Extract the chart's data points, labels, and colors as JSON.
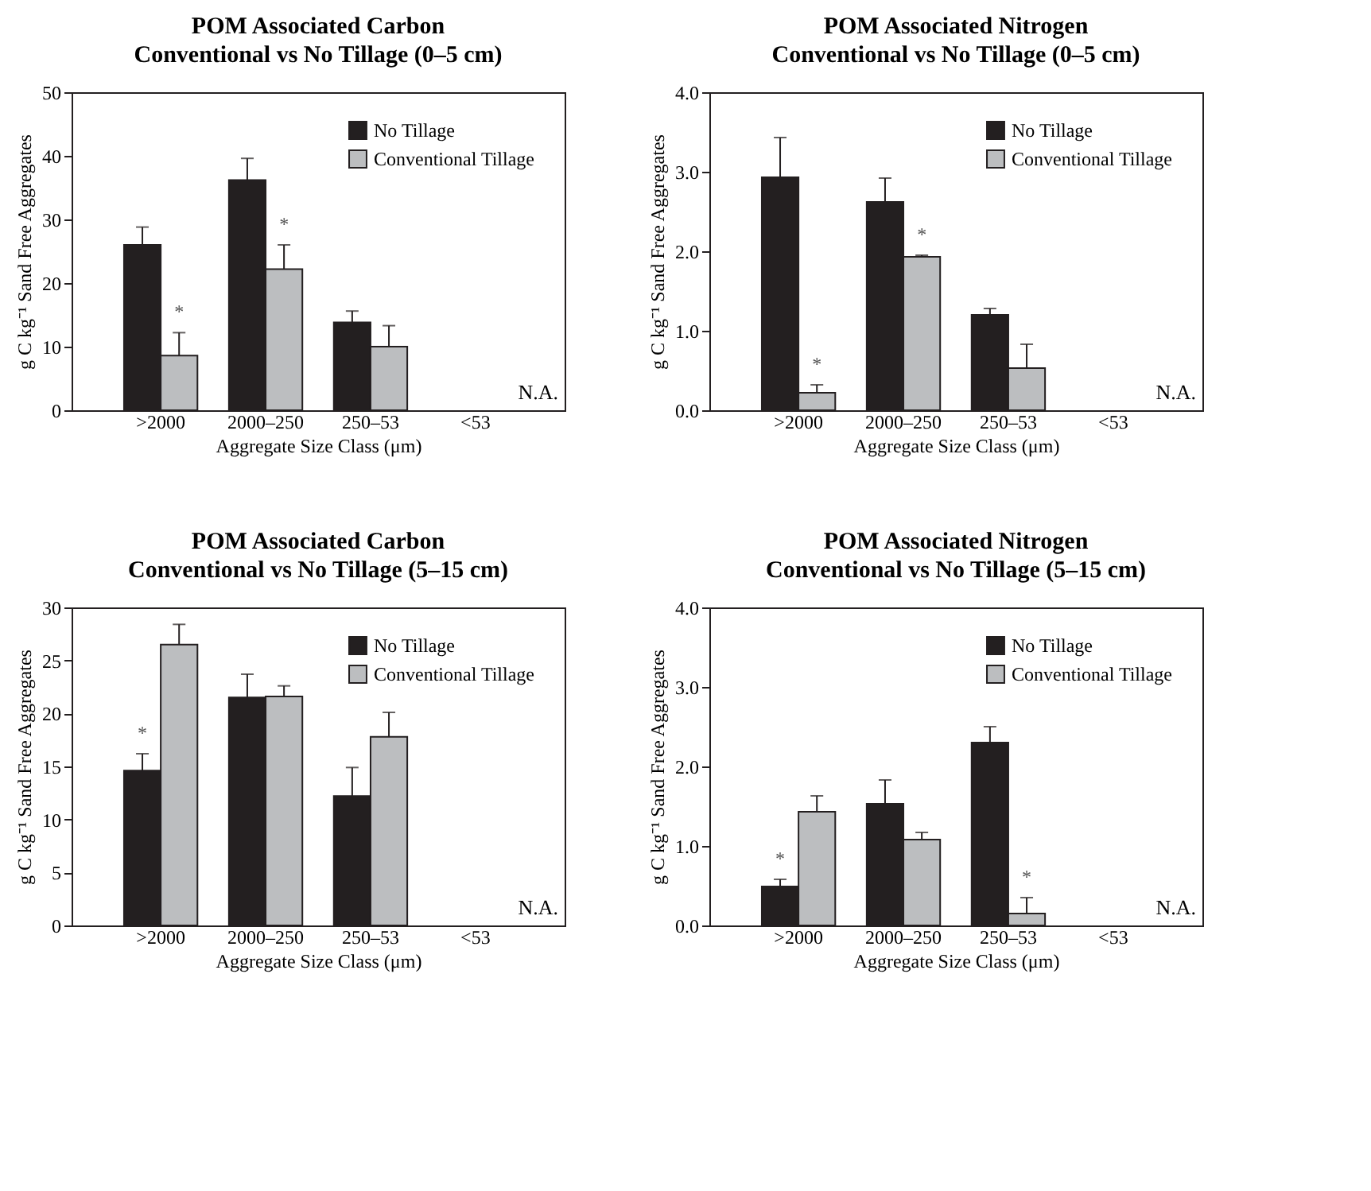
{
  "chart_data": [
    {
      "type": "bar",
      "title": "POM Associated Carbon",
      "subtitle": "Conventional vs No Tillage (0–5 cm)",
      "xlabel": "Aggregate Size Class (μm)",
      "ylabel": "g C kg⁻¹ Sand Free Aggregates",
      "categories": [
        ">2000",
        "2000–250",
        "250–53",
        "<53"
      ],
      "ylim": [
        0,
        50
      ],
      "yticks": [
        0,
        10,
        20,
        30,
        40,
        50
      ],
      "grid": false,
      "legend": "top right",
      "series": [
        {
          "name": "No Tillage",
          "color": "#231f20",
          "values": [
            26,
            36.2,
            13.8,
            null
          ],
          "errors": [
            2.8,
            3.4,
            1.8,
            null
          ]
        },
        {
          "name": "Conventional Tillage",
          "color": "#bcbec0",
          "values": [
            8.6,
            22.2,
            10,
            null
          ],
          "errors": [
            3.6,
            3.8,
            3.3,
            null
          ],
          "value_labels": [
            "*",
            "*",
            null,
            null
          ]
        }
      ],
      "annotations": [
        "N.A."
      ]
    },
    {
      "type": "bar",
      "title": "POM Associated Nitrogen",
      "subtitle": "Conventional vs No Tillage (0–5 cm)",
      "xlabel": "Aggregate Size Class (μm)",
      "ylabel": "g C kg⁻¹ Sand Free Aggregates",
      "categories": [
        ">2000",
        "2000–250",
        "250–53",
        "<53"
      ],
      "ylim": [
        0,
        4
      ],
      "yticks": [
        {
          "value": 0,
          "label": "0.0"
        },
        {
          "value": 1,
          "label": "1.0"
        },
        {
          "value": 2,
          "label": "2.0"
        },
        {
          "value": 3,
          "label": "3.0"
        },
        {
          "value": 4,
          "label": "4.0"
        }
      ],
      "grid": false,
      "legend": "top right",
      "series": [
        {
          "name": "No Tillage",
          "color": "#231f20",
          "values": [
            2.93,
            2.62,
            1.2,
            null
          ],
          "errors": [
            0.5,
            0.3,
            0.08,
            null
          ]
        },
        {
          "name": "Conventional Tillage",
          "color": "#bcbec0",
          "values": [
            0.22,
            1.93,
            0.53,
            null
          ],
          "errors": [
            0.1,
            0.02,
            0.3,
            null
          ],
          "value_labels": [
            "*",
            "*",
            null,
            null
          ]
        }
      ],
      "annotations": [
        "N.A."
      ]
    },
    {
      "type": "bar",
      "title": "POM Associated Carbon",
      "subtitle": "Conventional vs No Tillage (5–15 cm)",
      "xlabel": "Aggregate Size Class (μm)",
      "ylabel": "g C kg⁻¹ Sand Free Aggregates",
      "categories": [
        ">2000",
        "2000–250",
        "250–53",
        "<53"
      ],
      "ylim": [
        0,
        30
      ],
      "yticks": [
        0,
        5,
        10,
        15,
        20,
        25,
        30
      ],
      "grid": false,
      "legend": "top right",
      "series": [
        {
          "name": "No Tillage",
          "color": "#231f20",
          "values": [
            14.6,
            21.5,
            12.2,
            null
          ],
          "errors": [
            1.6,
            2.2,
            2.7,
            null
          ],
          "value_labels": [
            "*",
            null,
            null,
            null
          ]
        },
        {
          "name": "Conventional Tillage",
          "color": "#bcbec0",
          "values": [
            26.5,
            21.6,
            17.8,
            null
          ],
          "errors": [
            1.9,
            1.0,
            2.3,
            null
          ]
        }
      ],
      "annotations": [
        "N.A."
      ]
    },
    {
      "type": "bar",
      "title": "POM Associated Nitrogen",
      "subtitle": "Conventional vs No Tillage (5–15 cm)",
      "xlabel": "Aggregate Size Class (μm)",
      "ylabel": "g C kg⁻¹ Sand Free Aggregates",
      "categories": [
        ">2000",
        "2000–250",
        "250–53",
        "<53"
      ],
      "ylim": [
        0,
        4
      ],
      "yticks": [
        {
          "value": 0,
          "label": "0.0"
        },
        {
          "value": 1,
          "label": "1.0"
        },
        {
          "value": 2,
          "label": "2.0"
        },
        {
          "value": 3,
          "label": "3.0"
        },
        {
          "value": 4,
          "label": "4.0"
        }
      ],
      "grid": false,
      "legend": "top right",
      "series": [
        {
          "name": "No Tillage",
          "color": "#231f20",
          "values": [
            0.49,
            1.53,
            2.3,
            null
          ],
          "errors": [
            0.09,
            0.3,
            0.2,
            null
          ],
          "value_labels": [
            "*",
            null,
            null,
            null
          ]
        },
        {
          "name": "Conventional Tillage",
          "color": "#bcbec0",
          "values": [
            1.43,
            1.08,
            0.15,
            null
          ],
          "errors": [
            0.2,
            0.09,
            0.2,
            null
          ],
          "value_labels": [
            null,
            null,
            "*",
            null
          ]
        }
      ],
      "annotations": [
        "N.A."
      ]
    }
  ]
}
